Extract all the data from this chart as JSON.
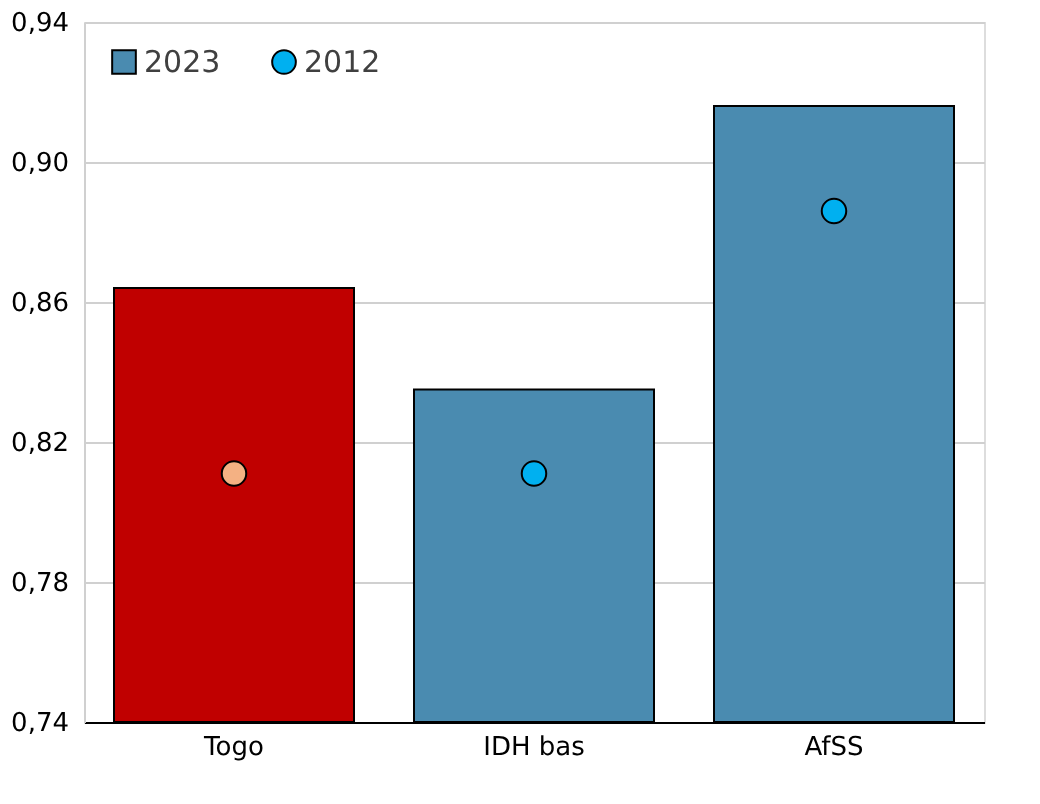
{
  "chart_data": {
    "type": "bar",
    "categories": [
      "Togo",
      "IDH bas",
      "AfSS"
    ],
    "series": [
      {
        "name": "2023",
        "type": "bar",
        "color": "#4a8bb0",
        "colors": [
          "#c00000",
          "#4a8bb0",
          "#4a8bb0"
        ],
        "values": [
          0.864,
          0.835,
          0.916
        ]
      },
      {
        "name": "2012",
        "type": "scatter",
        "color": "#00b0f0",
        "colors": [
          "#f4b183",
          "#00b0f0",
          "#00b0f0"
        ],
        "values": [
          0.811,
          0.811,
          0.886
        ]
      }
    ],
    "ylim": [
      0.74,
      0.94
    ],
    "yticks": [
      {
        "value": 0.74,
        "label": "0,74"
      },
      {
        "value": 0.78,
        "label": "0,78"
      },
      {
        "value": 0.82,
        "label": "0,82"
      },
      {
        "value": 0.86,
        "label": "0,86"
      },
      {
        "value": 0.9,
        "label": "0,90"
      },
      {
        "value": 0.94,
        "label": "0,94"
      }
    ],
    "grid": "y",
    "legend": "top left",
    "marker": "circle"
  }
}
